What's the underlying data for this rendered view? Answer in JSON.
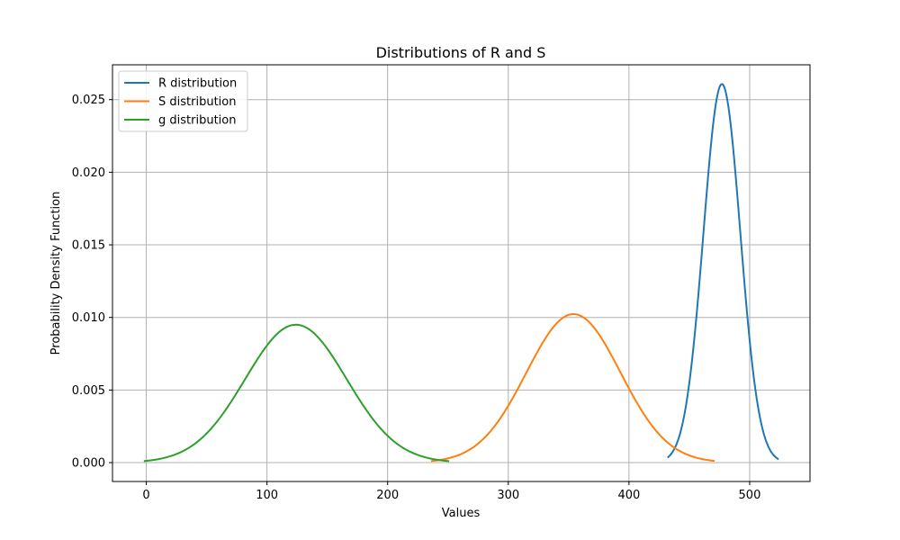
{
  "chart_data": {
    "type": "line",
    "title": "Distributions of R and S",
    "xlabel": "Values",
    "ylabel": "Probability Density Function",
    "xlim": [
      -28,
      550
    ],
    "ylim": [
      -0.0013,
      0.0274
    ],
    "xticks": [
      0,
      100,
      200,
      300,
      400,
      500
    ],
    "xtick_labels": [
      "0",
      "100",
      "200",
      "300",
      "400",
      "500"
    ],
    "yticks": [
      0,
      0.005,
      0.01,
      0.015,
      0.02,
      0.025
    ],
    "ytick_labels": [
      "0.000",
      "0.005",
      "0.010",
      "0.015",
      "0.020",
      "0.025"
    ],
    "grid": true,
    "legend_position": "top-left",
    "series": [
      {
        "name": "R distribution",
        "color": "#1f77b4",
        "mean": 477,
        "std": 15.3,
        "x_range": [
          432,
          524
        ]
      },
      {
        "name": "S distribution",
        "color": "#ff7f0e",
        "mean": 354,
        "std": 39,
        "x_range": [
          236,
          471
        ]
      },
      {
        "name": "g distribution",
        "color": "#2ca02c",
        "mean": 124,
        "std": 42,
        "x_range": [
          -2,
          251
        ]
      }
    ]
  }
}
